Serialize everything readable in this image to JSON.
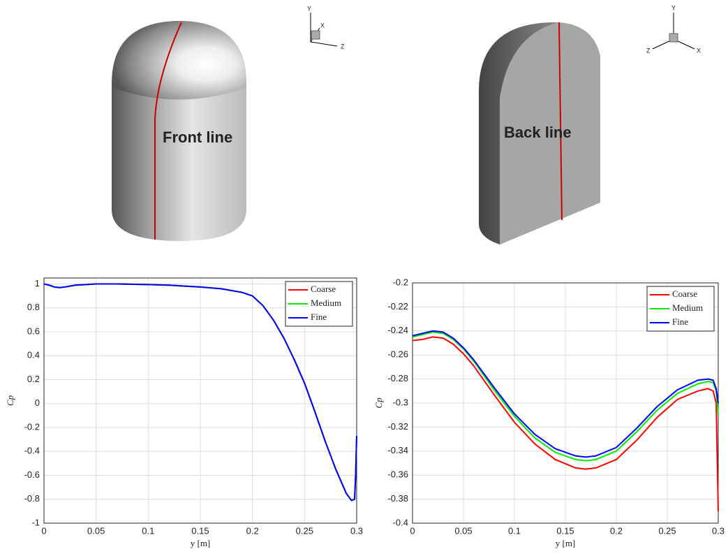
{
  "renders": [
    {
      "label": "Front line",
      "axes": {
        "y": "Y",
        "x": "X",
        "z": "Z"
      }
    },
    {
      "label": "Back line",
      "axes": {
        "y": "Y",
        "x": "X",
        "z": "Z"
      }
    }
  ],
  "chart_data": [
    {
      "type": "line",
      "xlabel": "y [m]",
      "ylabel": "Cp",
      "xlim": [
        0,
        0.3
      ],
      "ylim": [
        -1,
        1.05
      ],
      "xticks": [
        0,
        0.05,
        0.1,
        0.15,
        0.2,
        0.25,
        0.3
      ],
      "yticks": [
        -1,
        -0.8,
        -0.6,
        -0.4,
        -0.2,
        0,
        0.2,
        0.4,
        0.6,
        0.8,
        1
      ],
      "grid": true,
      "legend": "upper right",
      "x": [
        0,
        0.005,
        0.01,
        0.015,
        0.02,
        0.03,
        0.05,
        0.07,
        0.1,
        0.12,
        0.15,
        0.17,
        0.19,
        0.2,
        0.21,
        0.22,
        0.23,
        0.24,
        0.25,
        0.26,
        0.27,
        0.28,
        0.29,
        0.295,
        0.298,
        0.299,
        0.3
      ],
      "series": [
        {
          "name": "Coarse",
          "color": "#ff0000",
          "values": [
            1,
            0.99,
            0.975,
            0.97,
            0.975,
            0.99,
            1,
            1,
            0.995,
            0.99,
            0.975,
            0.96,
            0.93,
            0.9,
            0.82,
            0.7,
            0.55,
            0.37,
            0.17,
            -0.07,
            -0.32,
            -0.55,
            -0.75,
            -0.81,
            -0.8,
            -0.6,
            -0.27
          ]
        },
        {
          "name": "Medium",
          "color": "#00ee00",
          "values": [
            1,
            0.99,
            0.975,
            0.97,
            0.975,
            0.99,
            1,
            1,
            0.995,
            0.99,
            0.975,
            0.96,
            0.93,
            0.9,
            0.82,
            0.7,
            0.55,
            0.37,
            0.17,
            -0.07,
            -0.32,
            -0.55,
            -0.75,
            -0.81,
            -0.8,
            -0.6,
            -0.27
          ]
        },
        {
          "name": "Fine",
          "color": "#0000ff",
          "values": [
            1,
            0.99,
            0.975,
            0.97,
            0.975,
            0.99,
            1,
            1,
            0.995,
            0.99,
            0.975,
            0.96,
            0.93,
            0.9,
            0.82,
            0.7,
            0.55,
            0.37,
            0.17,
            -0.07,
            -0.32,
            -0.55,
            -0.75,
            -0.81,
            -0.8,
            -0.6,
            -0.27
          ]
        }
      ]
    },
    {
      "type": "line",
      "xlabel": "y [m]",
      "ylabel": "Cp",
      "xlim": [
        0,
        0.3
      ],
      "ylim": [
        -0.4,
        -0.2
      ],
      "xticks": [
        0,
        0.05,
        0.1,
        0.15,
        0.2,
        0.25,
        0.3
      ],
      "yticks": [
        -0.4,
        -0.38,
        -0.36,
        -0.34,
        -0.32,
        -0.3,
        -0.28,
        -0.26,
        -0.24,
        -0.22,
        -0.2
      ],
      "grid": true,
      "legend": "upper right",
      "x": [
        0,
        0.01,
        0.02,
        0.03,
        0.04,
        0.05,
        0.06,
        0.08,
        0.1,
        0.12,
        0.14,
        0.16,
        0.17,
        0.18,
        0.2,
        0.22,
        0.24,
        0.26,
        0.28,
        0.29,
        0.295,
        0.298,
        0.3
      ],
      "series": [
        {
          "name": "Coarse",
          "color": "#ff0000",
          "values": [
            -0.248,
            -0.247,
            -0.245,
            -0.246,
            -0.251,
            -0.259,
            -0.269,
            -0.293,
            -0.316,
            -0.334,
            -0.347,
            -0.354,
            -0.355,
            -0.354,
            -0.347,
            -0.331,
            -0.312,
            -0.297,
            -0.29,
            -0.288,
            -0.29,
            -0.3,
            -0.39
          ]
        },
        {
          "name": "Medium",
          "color": "#00ee00",
          "values": [
            -0.245,
            -0.243,
            -0.241,
            -0.242,
            -0.247,
            -0.255,
            -0.265,
            -0.289,
            -0.311,
            -0.329,
            -0.341,
            -0.347,
            -0.348,
            -0.347,
            -0.34,
            -0.324,
            -0.306,
            -0.292,
            -0.284,
            -0.282,
            -0.283,
            -0.29,
            -0.31
          ]
        },
        {
          "name": "Fine",
          "color": "#0000ff",
          "values": [
            -0.244,
            -0.242,
            -0.24,
            -0.241,
            -0.246,
            -0.254,
            -0.264,
            -0.287,
            -0.309,
            -0.326,
            -0.338,
            -0.344,
            -0.345,
            -0.344,
            -0.337,
            -0.321,
            -0.303,
            -0.289,
            -0.281,
            -0.28,
            -0.281,
            -0.288,
            -0.3
          ]
        }
      ]
    }
  ]
}
